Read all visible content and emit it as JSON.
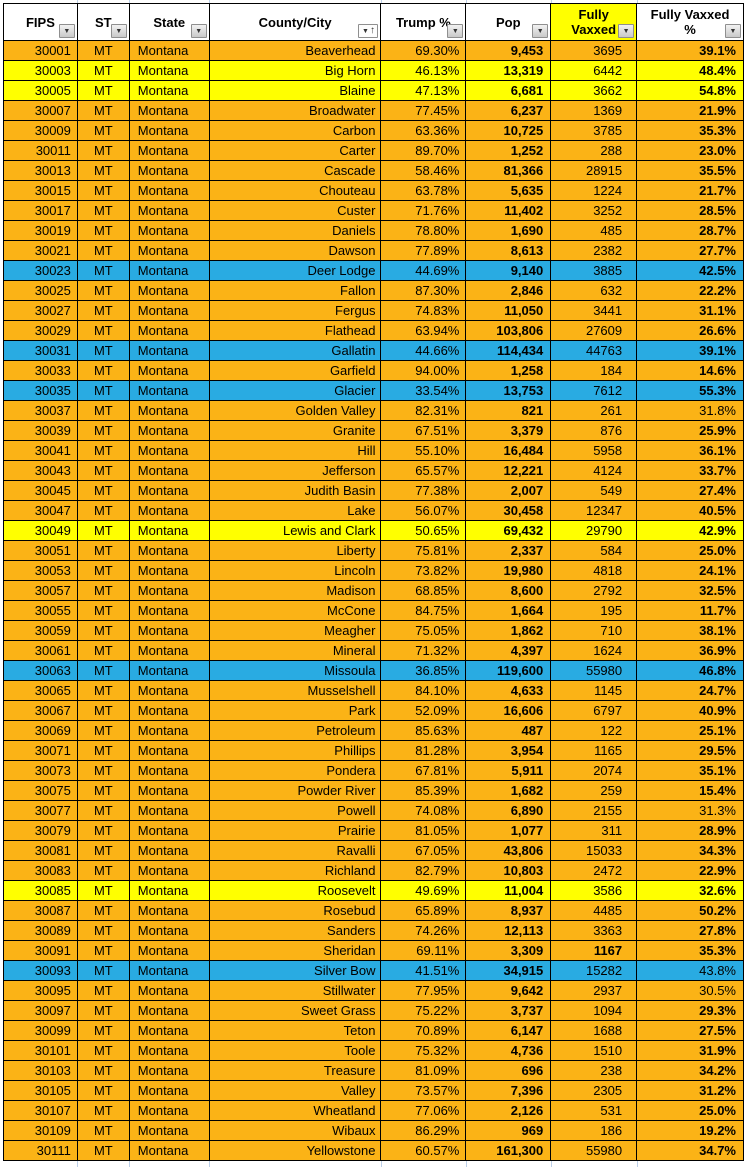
{
  "colors": {
    "orange": "#FBB316",
    "yellow": "#FFFF00",
    "blue": "#29ABE2",
    "header_highlight": "#FFFF00"
  },
  "header": {
    "columns": [
      {
        "key": "fips",
        "label": "FIPS",
        "filter": "dropdown",
        "highlight": false
      },
      {
        "key": "st",
        "label": "ST",
        "filter": "dropdown",
        "highlight": false
      },
      {
        "key": "state",
        "label": "State",
        "filter": "dropdown",
        "highlight": false
      },
      {
        "key": "county",
        "label": "County/City",
        "filter": "sort-asc-dropdown",
        "highlight": false
      },
      {
        "key": "trump",
        "label": "Trump %",
        "filter": "dropdown",
        "highlight": false
      },
      {
        "key": "pop",
        "label": "Pop",
        "filter": "dropdown",
        "highlight": false
      },
      {
        "key": "vax",
        "label": "Fully Vaxxed",
        "filter": "dropdown",
        "highlight": true
      },
      {
        "key": "vaxpct",
        "label": "Fully Vaxxed %",
        "filter": "dropdown",
        "highlight": false
      }
    ]
  },
  "rows": [
    {
      "fips": "30001",
      "st": "MT",
      "state": "Montana",
      "county": "Beaverhead",
      "trump": "69.30%",
      "pop": "9,453",
      "vax": "3695",
      "vaxpct": "39.1%",
      "highlight": "orange"
    },
    {
      "fips": "30003",
      "st": "MT",
      "state": "Montana",
      "county": "Big Horn",
      "trump": "46.13%",
      "pop": "13,319",
      "vax": "6442",
      "vaxpct": "48.4%",
      "highlight": "yellow"
    },
    {
      "fips": "30005",
      "st": "MT",
      "state": "Montana",
      "county": "Blaine",
      "trump": "47.13%",
      "pop": "6,681",
      "vax": "3662",
      "vaxpct": "54.8%",
      "highlight": "yellow"
    },
    {
      "fips": "30007",
      "st": "MT",
      "state": "Montana",
      "county": "Broadwater",
      "trump": "77.45%",
      "pop": "6,237",
      "vax": "1369",
      "vaxpct": "21.9%",
      "highlight": "orange"
    },
    {
      "fips": "30009",
      "st": "MT",
      "state": "Montana",
      "county": "Carbon",
      "trump": "63.36%",
      "pop": "10,725",
      "vax": "3785",
      "vaxpct": "35.3%",
      "highlight": "orange"
    },
    {
      "fips": "30011",
      "st": "MT",
      "state": "Montana",
      "county": "Carter",
      "trump": "89.70%",
      "pop": "1,252",
      "vax": "288",
      "vaxpct": "23.0%",
      "highlight": "orange"
    },
    {
      "fips": "30013",
      "st": "MT",
      "state": "Montana",
      "county": "Cascade",
      "trump": "58.46%",
      "pop": "81,366",
      "vax": "28915",
      "vaxpct": "35.5%",
      "highlight": "orange"
    },
    {
      "fips": "30015",
      "st": "MT",
      "state": "Montana",
      "county": "Chouteau",
      "trump": "63.78%",
      "pop": "5,635",
      "vax": "1224",
      "vaxpct": "21.7%",
      "highlight": "orange"
    },
    {
      "fips": "30017",
      "st": "MT",
      "state": "Montana",
      "county": "Custer",
      "trump": "71.76%",
      "pop": "11,402",
      "vax": "3252",
      "vaxpct": "28.5%",
      "highlight": "orange"
    },
    {
      "fips": "30019",
      "st": "MT",
      "state": "Montana",
      "county": "Daniels",
      "trump": "78.80%",
      "pop": "1,690",
      "vax": "485",
      "vaxpct": "28.7%",
      "highlight": "orange"
    },
    {
      "fips": "30021",
      "st": "MT",
      "state": "Montana",
      "county": "Dawson",
      "trump": "77.89%",
      "pop": "8,613",
      "vax": "2382",
      "vaxpct": "27.7%",
      "highlight": "orange"
    },
    {
      "fips": "30023",
      "st": "MT",
      "state": "Montana",
      "county": "Deer Lodge",
      "trump": "44.69%",
      "pop": "9,140",
      "vax": "3885",
      "vaxpct": "42.5%",
      "highlight": "blue"
    },
    {
      "fips": "30025",
      "st": "MT",
      "state": "Montana",
      "county": "Fallon",
      "trump": "87.30%",
      "pop": "2,846",
      "vax": "632",
      "vaxpct": "22.2%",
      "highlight": "orange"
    },
    {
      "fips": "30027",
      "st": "MT",
      "state": "Montana",
      "county": "Fergus",
      "trump": "74.83%",
      "pop": "11,050",
      "vax": "3441",
      "vaxpct": "31.1%",
      "highlight": "orange"
    },
    {
      "fips": "30029",
      "st": "MT",
      "state": "Montana",
      "county": "Flathead",
      "trump": "63.94%",
      "pop": "103,806",
      "vax": "27609",
      "vaxpct": "26.6%",
      "highlight": "orange"
    },
    {
      "fips": "30031",
      "st": "MT",
      "state": "Montana",
      "county": "Gallatin",
      "trump": "44.66%",
      "pop": "114,434",
      "vax": "44763",
      "vaxpct": "39.1%",
      "highlight": "blue"
    },
    {
      "fips": "30033",
      "st": "MT",
      "state": "Montana",
      "county": "Garfield",
      "trump": "94.00%",
      "pop": "1,258",
      "vax": "184",
      "vaxpct": "14.6%",
      "highlight": "orange"
    },
    {
      "fips": "30035",
      "st": "MT",
      "state": "Montana",
      "county": "Glacier",
      "trump": "33.54%",
      "pop": "13,753",
      "vax": "7612",
      "vaxpct": "55.3%",
      "highlight": "blue"
    },
    {
      "fips": "30037",
      "st": "MT",
      "state": "Montana",
      "county": "Golden Valley",
      "trump": "82.31%",
      "pop": "821",
      "vax": "261",
      "vaxpct": "31.8%",
      "highlight": "orange",
      "vaxpct_bold": false
    },
    {
      "fips": "30039",
      "st": "MT",
      "state": "Montana",
      "county": "Granite",
      "trump": "67.51%",
      "pop": "3,379",
      "vax": "876",
      "vaxpct": "25.9%",
      "highlight": "orange"
    },
    {
      "fips": "30041",
      "st": "MT",
      "state": "Montana",
      "county": "Hill",
      "trump": "55.10%",
      "pop": "16,484",
      "vax": "5958",
      "vaxpct": "36.1%",
      "highlight": "orange"
    },
    {
      "fips": "30043",
      "st": "MT",
      "state": "Montana",
      "county": "Jefferson",
      "trump": "65.57%",
      "pop": "12,221",
      "vax": "4124",
      "vaxpct": "33.7%",
      "highlight": "orange"
    },
    {
      "fips": "30045",
      "st": "MT",
      "state": "Montana",
      "county": "Judith Basin",
      "trump": "77.38%",
      "pop": "2,007",
      "vax": "549",
      "vaxpct": "27.4%",
      "highlight": "orange"
    },
    {
      "fips": "30047",
      "st": "MT",
      "state": "Montana",
      "county": "Lake",
      "trump": "56.07%",
      "pop": "30,458",
      "vax": "12347",
      "vaxpct": "40.5%",
      "highlight": "orange"
    },
    {
      "fips": "30049",
      "st": "MT",
      "state": "Montana",
      "county": "Lewis and Clark",
      "trump": "50.65%",
      "pop": "69,432",
      "vax": "29790",
      "vaxpct": "42.9%",
      "highlight": "yellow"
    },
    {
      "fips": "30051",
      "st": "MT",
      "state": "Montana",
      "county": "Liberty",
      "trump": "75.81%",
      "pop": "2,337",
      "vax": "584",
      "vaxpct": "25.0%",
      "highlight": "orange"
    },
    {
      "fips": "30053",
      "st": "MT",
      "state": "Montana",
      "county": "Lincoln",
      "trump": "73.82%",
      "pop": "19,980",
      "vax": "4818",
      "vaxpct": "24.1%",
      "highlight": "orange"
    },
    {
      "fips": "30057",
      "st": "MT",
      "state": "Montana",
      "county": "Madison",
      "trump": "68.85%",
      "pop": "8,600",
      "vax": "2792",
      "vaxpct": "32.5%",
      "highlight": "orange"
    },
    {
      "fips": "30055",
      "st": "MT",
      "state": "Montana",
      "county": "McCone",
      "trump": "84.75%",
      "pop": "1,664",
      "vax": "195",
      "vaxpct": "11.7%",
      "highlight": "orange"
    },
    {
      "fips": "30059",
      "st": "MT",
      "state": "Montana",
      "county": "Meagher",
      "trump": "75.05%",
      "pop": "1,862",
      "vax": "710",
      "vaxpct": "38.1%",
      "highlight": "orange"
    },
    {
      "fips": "30061",
      "st": "MT",
      "state": "Montana",
      "county": "Mineral",
      "trump": "71.32%",
      "pop": "4,397",
      "vax": "1624",
      "vaxpct": "36.9%",
      "highlight": "orange"
    },
    {
      "fips": "30063",
      "st": "MT",
      "state": "Montana",
      "county": "Missoula",
      "trump": "36.85%",
      "pop": "119,600",
      "vax": "55980",
      "vaxpct": "46.8%",
      "highlight": "blue"
    },
    {
      "fips": "30065",
      "st": "MT",
      "state": "Montana",
      "county": "Musselshell",
      "trump": "84.10%",
      "pop": "4,633",
      "vax": "1145",
      "vaxpct": "24.7%",
      "highlight": "orange"
    },
    {
      "fips": "30067",
      "st": "MT",
      "state": "Montana",
      "county": "Park",
      "trump": "52.09%",
      "pop": "16,606",
      "vax": "6797",
      "vaxpct": "40.9%",
      "highlight": "orange"
    },
    {
      "fips": "30069",
      "st": "MT",
      "state": "Montana",
      "county": "Petroleum",
      "trump": "85.63%",
      "pop": "487",
      "vax": "122",
      "vaxpct": "25.1%",
      "highlight": "orange"
    },
    {
      "fips": "30071",
      "st": "MT",
      "state": "Montana",
      "county": "Phillips",
      "trump": "81.28%",
      "pop": "3,954",
      "vax": "1165",
      "vaxpct": "29.5%",
      "highlight": "orange"
    },
    {
      "fips": "30073",
      "st": "MT",
      "state": "Montana",
      "county": "Pondera",
      "trump": "67.81%",
      "pop": "5,911",
      "vax": "2074",
      "vaxpct": "35.1%",
      "highlight": "orange"
    },
    {
      "fips": "30075",
      "st": "MT",
      "state": "Montana",
      "county": "Powder River",
      "trump": "85.39%",
      "pop": "1,682",
      "vax": "259",
      "vaxpct": "15.4%",
      "highlight": "orange"
    },
    {
      "fips": "30077",
      "st": "MT",
      "state": "Montana",
      "county": "Powell",
      "trump": "74.08%",
      "pop": "6,890",
      "vax": "2155",
      "vaxpct": "31.3%",
      "highlight": "orange",
      "vaxpct_bold": false
    },
    {
      "fips": "30079",
      "st": "MT",
      "state": "Montana",
      "county": "Prairie",
      "trump": "81.05%",
      "pop": "1,077",
      "vax": "311",
      "vaxpct": "28.9%",
      "highlight": "orange"
    },
    {
      "fips": "30081",
      "st": "MT",
      "state": "Montana",
      "county": "Ravalli",
      "trump": "67.05%",
      "pop": "43,806",
      "vax": "15033",
      "vaxpct": "34.3%",
      "highlight": "orange"
    },
    {
      "fips": "30083",
      "st": "MT",
      "state": "Montana",
      "county": "Richland",
      "trump": "82.79%",
      "pop": "10,803",
      "vax": "2472",
      "vaxpct": "22.9%",
      "highlight": "orange"
    },
    {
      "fips": "30085",
      "st": "MT",
      "state": "Montana",
      "county": "Roosevelt",
      "trump": "49.69%",
      "pop": "11,004",
      "vax": "3586",
      "vaxpct": "32.6%",
      "highlight": "yellow"
    },
    {
      "fips": "30087",
      "st": "MT",
      "state": "Montana",
      "county": "Rosebud",
      "trump": "65.89%",
      "pop": "8,937",
      "vax": "4485",
      "vaxpct": "50.2%",
      "highlight": "orange"
    },
    {
      "fips": "30089",
      "st": "MT",
      "state": "Montana",
      "county": "Sanders",
      "trump": "74.26%",
      "pop": "12,113",
      "vax": "3363",
      "vaxpct": "27.8%",
      "highlight": "orange"
    },
    {
      "fips": "30091",
      "st": "MT",
      "state": "Montana",
      "county": "Sheridan",
      "trump": "69.11%",
      "pop": "3,309",
      "vax": "1167",
      "vaxpct": "35.3%",
      "highlight": "orange",
      "vax_bold": true
    },
    {
      "fips": "30093",
      "st": "MT",
      "state": "Montana",
      "county": "Silver Bow",
      "trump": "41.51%",
      "pop": "34,915",
      "vax": "15282",
      "vaxpct": "43.8%",
      "highlight": "blue",
      "vaxpct_bold": false
    },
    {
      "fips": "30095",
      "st": "MT",
      "state": "Montana",
      "county": "Stillwater",
      "trump": "77.95%",
      "pop": "9,642",
      "vax": "2937",
      "vaxpct": "30.5%",
      "highlight": "orange",
      "vaxpct_bold": false
    },
    {
      "fips": "30097",
      "st": "MT",
      "state": "Montana",
      "county": "Sweet Grass",
      "trump": "75.22%",
      "pop": "3,737",
      "vax": "1094",
      "vaxpct": "29.3%",
      "highlight": "orange"
    },
    {
      "fips": "30099",
      "st": "MT",
      "state": "Montana",
      "county": "Teton",
      "trump": "70.89%",
      "pop": "6,147",
      "vax": "1688",
      "vaxpct": "27.5%",
      "highlight": "orange"
    },
    {
      "fips": "30101",
      "st": "MT",
      "state": "Montana",
      "county": "Toole",
      "trump": "75.32%",
      "pop": "4,736",
      "vax": "1510",
      "vaxpct": "31.9%",
      "highlight": "orange"
    },
    {
      "fips": "30103",
      "st": "MT",
      "state": "Montana",
      "county": "Treasure",
      "trump": "81.09%",
      "pop": "696",
      "vax": "238",
      "vaxpct": "34.2%",
      "highlight": "orange"
    },
    {
      "fips": "30105",
      "st": "MT",
      "state": "Montana",
      "county": "Valley",
      "trump": "73.57%",
      "pop": "7,396",
      "vax": "2305",
      "vaxpct": "31.2%",
      "highlight": "orange"
    },
    {
      "fips": "30107",
      "st": "MT",
      "state": "Montana",
      "county": "Wheatland",
      "trump": "77.06%",
      "pop": "2,126",
      "vax": "531",
      "vaxpct": "25.0%",
      "highlight": "orange"
    },
    {
      "fips": "30109",
      "st": "MT",
      "state": "Montana",
      "county": "Wibaux",
      "trump": "86.29%",
      "pop": "969",
      "vax": "186",
      "vaxpct": "19.2%",
      "highlight": "orange"
    },
    {
      "fips": "30111",
      "st": "MT",
      "state": "Montana",
      "county": "Yellowstone",
      "trump": "60.57%",
      "pop": "161,300",
      "vax": "55980",
      "vaxpct": "34.7%",
      "highlight": "orange"
    }
  ],
  "icons": {
    "filter_dropdown": "▼",
    "sort_ascending": "↑"
  }
}
